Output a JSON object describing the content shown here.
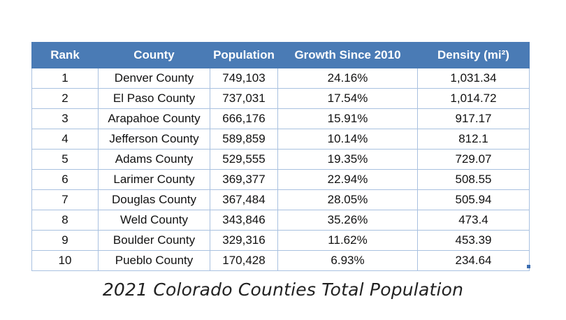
{
  "table": {
    "headers": [
      "Rank",
      "County",
      "Population",
      "Growth Since 2010",
      "Density (mi²)"
    ],
    "rows": [
      [
        "1",
        "Denver County",
        "749,103",
        "24.16%",
        "1,031.34"
      ],
      [
        "2",
        "El Paso County",
        "737,031",
        "17.54%",
        "1,014.72"
      ],
      [
        "3",
        "Arapahoe County",
        "666,176",
        "15.91%",
        "917.17"
      ],
      [
        "4",
        "Jefferson County",
        "589,859",
        "10.14%",
        "812.1"
      ],
      [
        "5",
        "Adams County",
        "529,555",
        "19.35%",
        "729.07"
      ],
      [
        "6",
        "Larimer County",
        "369,377",
        "22.94%",
        "508.55"
      ],
      [
        "7",
        "Douglas County",
        "367,484",
        "28.05%",
        "505.94"
      ],
      [
        "8",
        "Weld County",
        "343,846",
        "35.26%",
        "473.4"
      ],
      [
        "9",
        "Boulder County",
        "329,316",
        "11.62%",
        "453.39"
      ],
      [
        "10",
        "Pueblo County",
        "170,428",
        "6.93%",
        "234.64"
      ]
    ]
  },
  "caption": "2021 Colorado Counties Total Population",
  "colors": {
    "header_bg": "#4a7bb5",
    "header_text": "#ffffff",
    "grid": "#a9c1e0"
  }
}
